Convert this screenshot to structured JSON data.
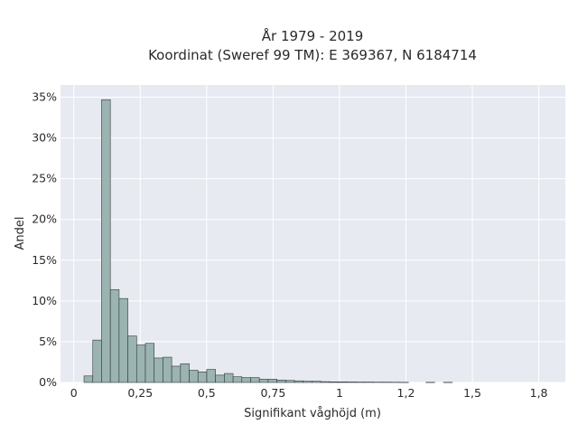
{
  "chart_data": {
    "type": "bar",
    "title_line1": "År 1979 - 2019",
    "title_line2": "Koordinat (Sweref 99 TM): E 369367, N 6184714",
    "xlabel": "Signifikant våghöjd (m)",
    "ylabel": "Andel",
    "xlim": [
      -0.05,
      1.85
    ],
    "ylim": [
      0,
      36.5
    ],
    "x_ticks": [
      0,
      0.25,
      0.5,
      0.75,
      1,
      1.25,
      1.5,
      1.75
    ],
    "x_tick_labels": [
      "0",
      "0,25",
      "0,5",
      "0,75",
      "1",
      "1,2",
      "1,5",
      "1,8"
    ],
    "y_ticks": [
      0,
      5,
      10,
      15,
      20,
      25,
      30,
      35
    ],
    "y_tick_labels": [
      "0%",
      "5%",
      "10%",
      "15%",
      "20%",
      "25%",
      "30%",
      "35%"
    ],
    "bin_width": 0.033,
    "bins": [
      {
        "x": 0.055,
        "value": 0.8
      },
      {
        "x": 0.088,
        "value": 5.2
      },
      {
        "x": 0.121,
        "value": 34.7
      },
      {
        "x": 0.154,
        "value": 11.4
      },
      {
        "x": 0.187,
        "value": 10.3
      },
      {
        "x": 0.22,
        "value": 5.7
      },
      {
        "x": 0.253,
        "value": 4.6
      },
      {
        "x": 0.286,
        "value": 4.8
      },
      {
        "x": 0.319,
        "value": 3.0
      },
      {
        "x": 0.352,
        "value": 3.1
      },
      {
        "x": 0.385,
        "value": 2.0
      },
      {
        "x": 0.418,
        "value": 2.3
      },
      {
        "x": 0.451,
        "value": 1.5
      },
      {
        "x": 0.484,
        "value": 1.3
      },
      {
        "x": 0.517,
        "value": 1.6
      },
      {
        "x": 0.55,
        "value": 0.9
      },
      {
        "x": 0.583,
        "value": 1.1
      },
      {
        "x": 0.616,
        "value": 0.7
      },
      {
        "x": 0.649,
        "value": 0.6
      },
      {
        "x": 0.682,
        "value": 0.6
      },
      {
        "x": 0.715,
        "value": 0.4
      },
      {
        "x": 0.748,
        "value": 0.4
      },
      {
        "x": 0.781,
        "value": 0.3
      },
      {
        "x": 0.814,
        "value": 0.25
      },
      {
        "x": 0.847,
        "value": 0.2
      },
      {
        "x": 0.88,
        "value": 0.15
      },
      {
        "x": 0.913,
        "value": 0.15
      },
      {
        "x": 0.946,
        "value": 0.1
      },
      {
        "x": 0.979,
        "value": 0.08
      },
      {
        "x": 1.012,
        "value": 0.07
      },
      {
        "x": 1.045,
        "value": 0.06
      },
      {
        "x": 1.078,
        "value": 0.05
      },
      {
        "x": 1.111,
        "value": 0.05
      },
      {
        "x": 1.144,
        "value": 0.04
      },
      {
        "x": 1.177,
        "value": 0.04
      },
      {
        "x": 1.21,
        "value": 0.03
      },
      {
        "x": 1.243,
        "value": 0.02
      },
      {
        "x": 1.342,
        "value": 0.02
      },
      {
        "x": 1.408,
        "value": 0.02
      }
    ],
    "grid": true,
    "colors": {
      "plot_background": "#e8eaf2",
      "bar_fill": "#9bb3b1",
      "bar_edge": "#2f3b3a",
      "grid": "#ffffff"
    }
  }
}
